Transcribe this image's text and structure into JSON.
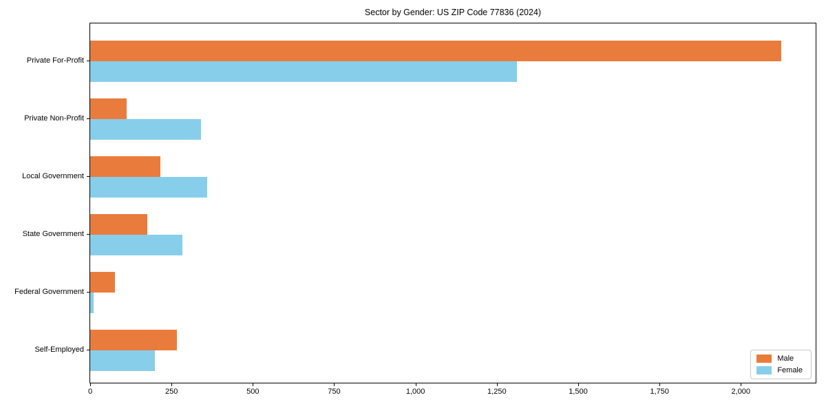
{
  "chart_data": {
    "type": "bar",
    "orientation": "horizontal",
    "title": "Sector by Gender: US ZIP Code 77836 (2024)",
    "categories": [
      "Private For-Profit",
      "Private Non-Profit",
      "Local Government",
      "State Government",
      "Federal Government",
      "Self-Employed"
    ],
    "series": [
      {
        "name": "Male",
        "color": "#E97C3C",
        "values": [
          2125,
          112,
          215,
          175,
          76,
          267
        ]
      },
      {
        "name": "Female",
        "color": "#87CEEB",
        "values": [
          1312,
          340,
          360,
          284,
          11,
          198
        ]
      }
    ],
    "xlabel": "",
    "ylabel": "",
    "xlim": [
      0,
      2230
    ],
    "xticks": [
      0,
      250,
      500,
      750,
      1000,
      1250,
      1500,
      1750,
      2000
    ],
    "xtick_labels": [
      "0",
      "250",
      "500",
      "750",
      "1,000",
      "1,250",
      "1,500",
      "1,750",
      "2,000"
    ],
    "grid": false,
    "legend": {
      "position": "lower right",
      "labels": [
        "Male",
        "Female"
      ]
    }
  }
}
